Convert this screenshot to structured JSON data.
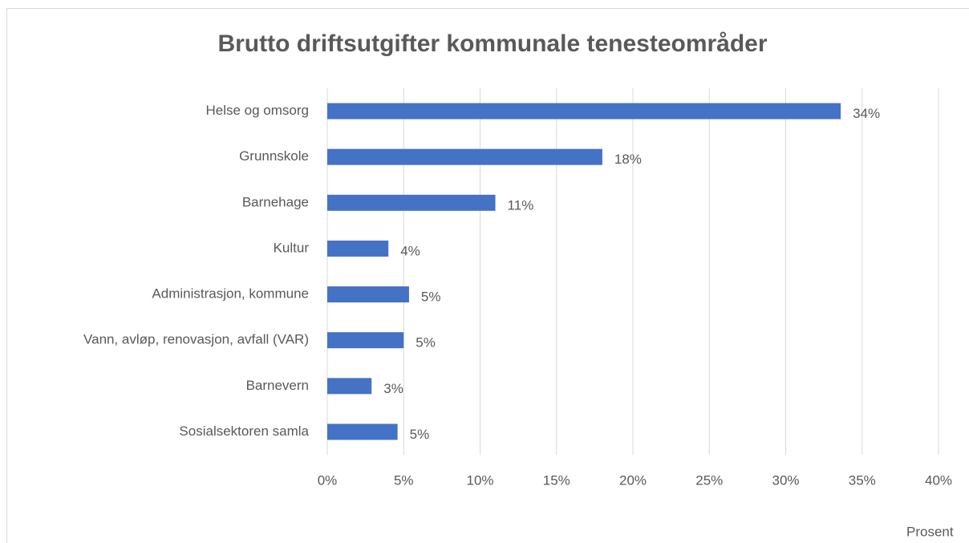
{
  "chart_data": {
    "type": "bar",
    "orientation": "horizontal",
    "title": "Brutto driftsutgifter kommunale tenesteområder",
    "x_label": "Prosent",
    "categories": [
      "Helse og omsorg",
      "Grunnskole",
      "Barnehage",
      "Kultur",
      "Administrasjon, kommune",
      "Vann, avløp, renovasjon, avfall (VAR)",
      "Barnevern",
      "Sosialsektoren samla"
    ],
    "values": [
      33.6,
      18,
      11,
      4,
      5.35,
      5,
      2.9,
      4.6
    ],
    "value_labels": [
      "34%",
      "18%",
      "11%",
      "4%",
      "5%",
      "5%",
      "3%",
      "5%"
    ],
    "color": "#4472c4",
    "xlim": [
      0,
      40
    ],
    "xticks": [
      {
        "value": 0,
        "label": "0%"
      },
      {
        "value": 5,
        "label": "5%"
      },
      {
        "value": 10,
        "label": "10%"
      },
      {
        "value": 15,
        "label": "15%"
      },
      {
        "value": 20,
        "label": "20%"
      },
      {
        "value": 25,
        "label": "25%"
      },
      {
        "value": 30,
        "label": "30%"
      },
      {
        "value": 35,
        "label": "35%"
      },
      {
        "value": 40,
        "label": "40%"
      }
    ],
    "grid": true
  }
}
